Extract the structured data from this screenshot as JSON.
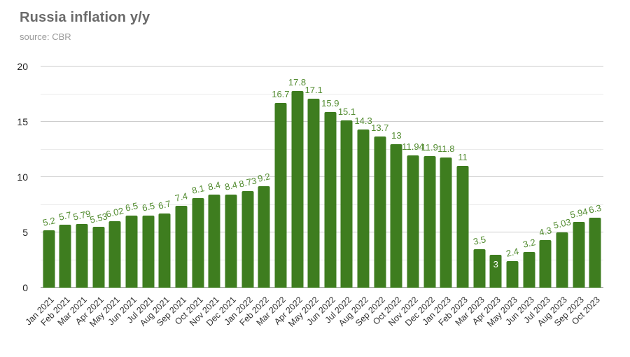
{
  "header": {
    "title": "Russia inflation y/y",
    "source": "source: CBR"
  },
  "colors": {
    "bar": "#3e7d1f",
    "value_label": "#538c31",
    "value_label_inside": "#ffffff",
    "grid_major": "#cccccc",
    "grid_minor": "#ebebeb",
    "axis_line": "#9e9e9e",
    "y_tick_text": "#222222",
    "x_tick_text": "#333333",
    "title_text": "#6b6b6b",
    "source_text": "#9a9a9a",
    "background": "#ffffff"
  },
  "chart_data": {
    "type": "bar",
    "title": "Russia inflation y/y",
    "subtitle": "source: CBR",
    "xlabel": "",
    "ylabel": "",
    "ylim": [
      0,
      20
    ],
    "yticks": [
      0,
      5,
      10,
      15,
      20
    ],
    "minor_step": 2.5,
    "major_step": 5,
    "grid": true,
    "legend": "none",
    "rotate_below": 10,
    "inside_label_index": 27,
    "categories": [
      "Jan 2021",
      "Feb 2021",
      "Mar 2021",
      "Apr 2021",
      "May 2021",
      "Jun 2021",
      "Jul 2021",
      "Aug 2021",
      "Sep 2021",
      "Oct 2021",
      "Nov 2021",
      "Dec 2021",
      "Jan 2022",
      "Feb 2022",
      "Mar 2022",
      "Apr 2022",
      "May 2022",
      "Jun 2022",
      "Jul 2022",
      "Aug 2022",
      "Sep 2022",
      "Oct 2022",
      "Nov 2022",
      "Dec 2022",
      "Jan 2023",
      "Feb 2023",
      "Mar 2023",
      "Apr 2023",
      "May 2023",
      "Jun 2023",
      "Jul 2023",
      "Aug 2023",
      "Sep 2023",
      "Oct 2023"
    ],
    "values": [
      5.2,
      5.7,
      5.79,
      5.53,
      6.02,
      6.5,
      6.5,
      6.7,
      7.4,
      8.1,
      8.4,
      8.4,
      8.73,
      9.2,
      16.7,
      17.8,
      17.1,
      15.9,
      15.1,
      14.3,
      13.7,
      13,
      11.94,
      11.9,
      11.8,
      11,
      3.5,
      3,
      2.4,
      3.2,
      4.3,
      5.03,
      5.94,
      6.3
    ],
    "labels": [
      "5.2",
      "5.7",
      "5.79",
      "5.53",
      "6.02",
      "6.5",
      "6.5",
      "6.7",
      "7.4",
      "8.1",
      "8.4",
      "8.4",
      "8.73",
      "9.2",
      "16.7",
      "17.8",
      "17.1",
      "15.9",
      "15.1",
      "14.3",
      "13.7",
      "13",
      "11.94",
      "11.9",
      "11.8",
      "11",
      "3.5",
      "3",
      "2.4",
      "3.2",
      "4.3",
      "5.03",
      "5.94",
      "6.3"
    ]
  }
}
